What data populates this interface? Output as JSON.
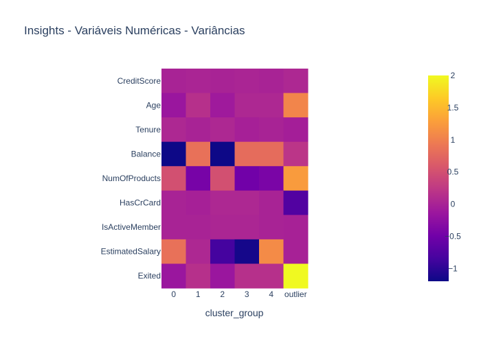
{
  "chart_data": {
    "type": "heatmap",
    "title": "Insights - Variáveis Numéricas - Variâncias",
    "xlabel": "cluster_group",
    "ylabel": "",
    "x": [
      "0",
      "1",
      "2",
      "3",
      "4",
      "outlier"
    ],
    "y": [
      "CreditScore",
      "Age",
      "Tenure",
      "Balance",
      "NumOfProducts",
      "HasCrCard",
      "IsActiveMember",
      "EstimatedSalary",
      "Exited"
    ],
    "z": [
      [
        0.0,
        0.02,
        0.0,
        0.02,
        0.0,
        0.05
      ],
      [
        -0.15,
        0.15,
        -0.1,
        0.05,
        0.05,
        1.05
      ],
      [
        0.05,
        0.0,
        0.05,
        -0.03,
        0.0,
        -0.05
      ],
      [
        -1.2,
        0.85,
        -1.2,
        0.8,
        0.8,
        0.2
      ],
      [
        0.5,
        -0.45,
        0.5,
        -0.5,
        -0.42,
        1.25
      ],
      [
        0.0,
        -0.03,
        0.05,
        0.05,
        0.0,
        -0.75
      ],
      [
        0.0,
        0.0,
        0.03,
        0.03,
        0.0,
        -0.02
      ],
      [
        0.85,
        0.05,
        -0.85,
        -1.15,
        1.1,
        -0.02
      ],
      [
        -0.15,
        0.15,
        -0.15,
        0.15,
        0.15,
        2.0
      ]
    ],
    "zmin": -1.2,
    "zmax": 2.0,
    "colorscale": [
      "#0d0887",
      "#46039f",
      "#7201a8",
      "#9c179e",
      "#bd3786",
      "#d8576b",
      "#ed7953",
      "#fb9f3a",
      "#fdca26",
      "#f0f921"
    ],
    "colorbar": {
      "ticks": [
        2,
        1.5,
        1,
        0.5,
        0,
        -0.5,
        -1
      ],
      "tick_labels": [
        "2",
        "1.5",
        "1",
        "0.5",
        "0",
        "−0.5",
        "−1"
      ]
    }
  }
}
